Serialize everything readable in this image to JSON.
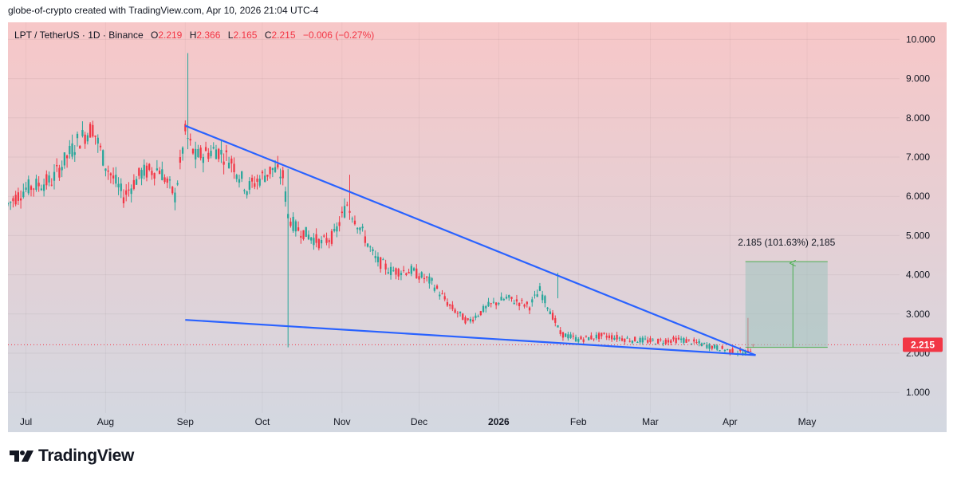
{
  "header": {
    "caption": "globe-of-crypto created with TradingView.com, Apr 10, 2026 21:04 UTC-4"
  },
  "legend": {
    "symbol": "LPT / TetherUS · 1D · Binance",
    "open_label": "O",
    "open": "2.219",
    "high_label": "H",
    "high": "2.366",
    "low_label": "L",
    "low": "2.165",
    "close_label": "C",
    "close": "2.215",
    "change": "−0.006 (−0.27%)"
  },
  "brand": {
    "name": "TradingView"
  },
  "colors": {
    "up": "#26a69a",
    "down": "#f23645",
    "trendline": "#2962ff",
    "measure_fill": "#9ec3bd",
    "measure_line": "#4caf50",
    "bg_top": "#f7c7c8",
    "bg_bottom": "#d3d8e1"
  },
  "chart_data": {
    "type": "candlestick",
    "title": "LPT / TetherUS · 1D · Binance",
    "ylim": [
      0.5,
      10.5
    ],
    "y_ticks": [
      "10.000",
      "9.000",
      "8.000",
      "7.000",
      "6.000",
      "5.000",
      "4.000",
      "3.000",
      "2.000",
      "1.000"
    ],
    "y_tick_values": [
      10,
      9,
      8,
      7,
      6,
      5,
      4,
      3,
      2,
      1
    ],
    "x_ticks": [
      "Jul",
      "Aug",
      "Sep",
      "Oct",
      "Nov",
      "Dec",
      "2026",
      "Feb",
      "Mar",
      "Apr",
      "May"
    ],
    "x_tick_days": [
      0,
      31,
      62,
      92,
      123,
      153,
      184,
      215,
      243,
      274,
      304
    ],
    "xlim_days": [
      -7,
      340
    ],
    "last_day": 283,
    "last_price": 2.215,
    "last_price_label": "2.215",
    "price_path": [
      [
        -7,
        5.8
      ],
      [
        0,
        6.2
      ],
      [
        10,
        6.4
      ],
      [
        20,
        7.4
      ],
      [
        26,
        7.75
      ],
      [
        31,
        6.8
      ],
      [
        38,
        6.0
      ],
      [
        45,
        6.6
      ],
      [
        52,
        6.7
      ],
      [
        58,
        6.0
      ],
      [
        62,
        7.6
      ],
      [
        66,
        7.0
      ],
      [
        74,
        7.2
      ],
      [
        80,
        6.9
      ],
      [
        86,
        6.2
      ],
      [
        92,
        6.5
      ],
      [
        96,
        6.7
      ],
      [
        100,
        6.5
      ],
      [
        102,
        5.5
      ],
      [
        105,
        5.2
      ],
      [
        110,
        5.0
      ],
      [
        115,
        4.8
      ],
      [
        120,
        5.0
      ],
      [
        125,
        5.8
      ],
      [
        130,
        5.2
      ],
      [
        136,
        4.4
      ],
      [
        142,
        4.1
      ],
      [
        150,
        4.1
      ],
      [
        158,
        3.8
      ],
      [
        165,
        3.2
      ],
      [
        172,
        2.8
      ],
      [
        180,
        3.2
      ],
      [
        187,
        3.4
      ],
      [
        192,
        3.3
      ],
      [
        196,
        3.2
      ],
      [
        200,
        3.6
      ],
      [
        204,
        3.1
      ],
      [
        208,
        2.5
      ],
      [
        215,
        2.35
      ],
      [
        225,
        2.45
      ],
      [
        235,
        2.35
      ],
      [
        245,
        2.3
      ],
      [
        255,
        2.35
      ],
      [
        265,
        2.2
      ],
      [
        275,
        2.05
      ],
      [
        281,
        2.0
      ],
      [
        283,
        2.215
      ]
    ],
    "spikes": [
      {
        "day": 63,
        "high": 9.65,
        "low": 7.2
      },
      {
        "day": 102,
        "high": 6.7,
        "low": 2.15
      },
      {
        "day": 126,
        "high": 6.55,
        "low": 5.4
      },
      {
        "day": 207,
        "high": 4.05,
        "low": 3.4
      },
      {
        "day": 281,
        "high": 2.9,
        "low": 2.0
      }
    ],
    "trendlines": [
      {
        "name": "upper resistance",
        "from": [
          62,
          7.8
        ],
        "to": [
          284,
          1.95
        ]
      },
      {
        "name": "lower support",
        "from": [
          62,
          2.85
        ],
        "to": [
          284,
          1.95
        ]
      }
    ],
    "measure": {
      "from_day": 280,
      "to_day": 312,
      "from_price": 2.15,
      "to_price": 4.335,
      "label": "2.185 (101.63%) 2,185"
    }
  }
}
